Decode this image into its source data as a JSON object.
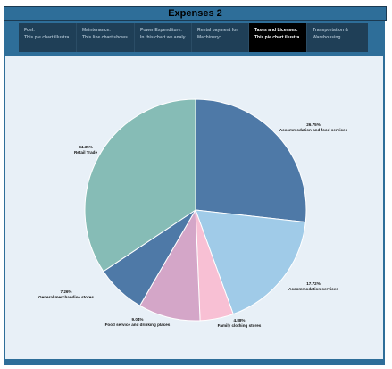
{
  "header": {
    "title": "Expenses 2"
  },
  "tabs": [
    {
      "line1": "Fuel:",
      "line2": "This pie chart illustra..",
      "active": false
    },
    {
      "line1": "Maintenance:",
      "line2": "This line chart shows ..",
      "active": false
    },
    {
      "line1": "Power Expenditure:",
      "line2": "In this chart we analy..",
      "active": false
    },
    {
      "line1": "Rental payment for",
      "line2": "Machinery:..",
      "active": false
    },
    {
      "line1": "Taxes and Licenses:",
      "line2": "This pie chart illustra..",
      "active": true
    },
    {
      "line1": "Transportation &",
      "line2": "Warehousing..",
      "active": false
    }
  ],
  "chart_data": {
    "type": "pie",
    "slices": [
      {
        "label": "Accommodation and food services",
        "value": 26.75,
        "pct_label": "26.75%",
        "color": "#4e79a7"
      },
      {
        "label": "Accommodation services",
        "value": 17.72,
        "pct_label": "17.72%",
        "color": "#a0cbe8"
      },
      {
        "label": "Family clothing stores",
        "value": 4.88,
        "pct_label": "4.88%",
        "color": "#f8c0d4"
      },
      {
        "label": "Food service and drinking places",
        "value": 9.04,
        "pct_label": "9.04%",
        "color": "#d4a6c8"
      },
      {
        "label": "General merchandise stores",
        "value": 7.26,
        "pct_label": "7.26%",
        "color": "#4e79a7"
      },
      {
        "label": "Retail Trade",
        "value": 34.35,
        "pct_label": "34.35%",
        "color": "#86bcb6"
      }
    ]
  }
}
